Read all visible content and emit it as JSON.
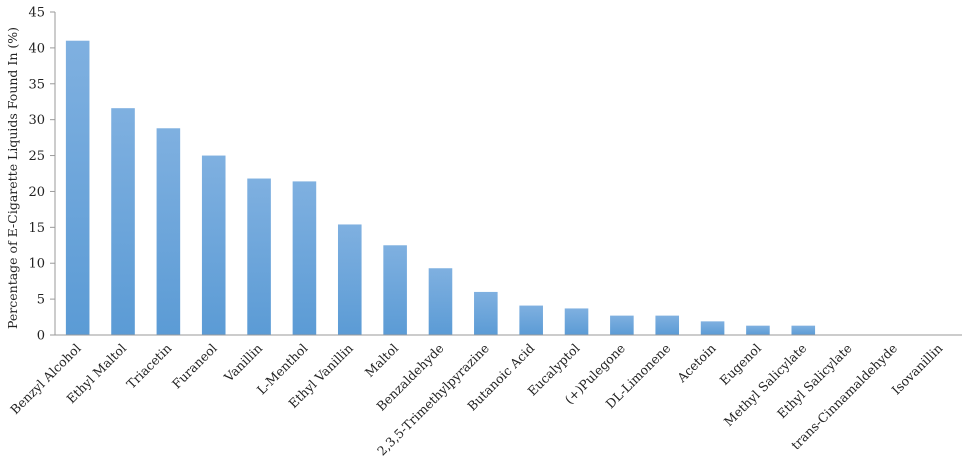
{
  "chart_data": {
    "type": "bar",
    "title": "",
    "xlabel": "",
    "ylabel": "Percentage of E-Cigarette Liquids Found In (%)",
    "ylim": [
      0,
      45
    ],
    "yticks": [
      0,
      5,
      10,
      15,
      20,
      25,
      30,
      35,
      40,
      45
    ],
    "grid": false,
    "legend": "none",
    "bar_color": "#5b9bd5",
    "categories": [
      "Benzyl Alcohol",
      "Ethyl Maltol",
      "Triacetin",
      "Furaneol",
      "Vanillin",
      "L-Menthol",
      "Ethyl Vanillin",
      "Maltol",
      "Benzaldehyde",
      "2,3,5-Trimethylpyrazine",
      "Butanoic Acid",
      "Eucalyptol",
      "(+)Pulegone",
      "DL-Limonene",
      "Acetoin",
      "Eugenol",
      "Methyl Salicylate",
      "Ethyl Salicylate",
      "trans-Cinnamaldehyde",
      "Isovanillin"
    ],
    "values": [
      41,
      31.6,
      28.8,
      25,
      21.8,
      21.4,
      15.4,
      12.5,
      9.3,
      6,
      4.1,
      3.7,
      2.7,
      2.7,
      1.9,
      1.3,
      1.3,
      0,
      0,
      0
    ]
  }
}
